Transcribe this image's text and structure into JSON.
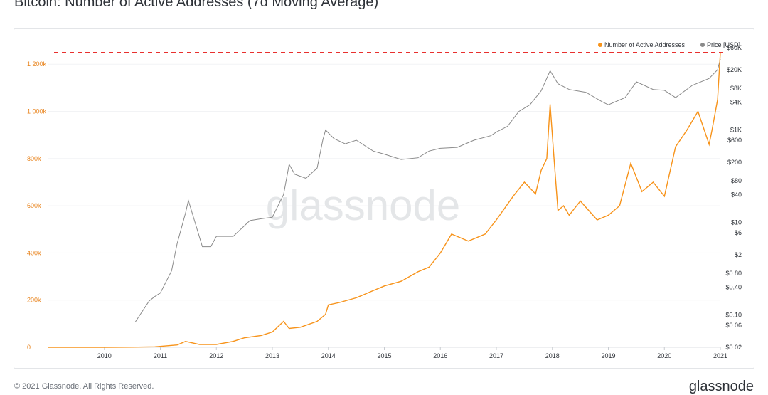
{
  "title": "Bitcoin: Number of Active Addresses (7d Moving Average)",
  "watermark": "glassnode",
  "footer": {
    "copyright": "© 2021 Glassnode. All Rights Reserved.",
    "logo": "glassnode"
  },
  "colors": {
    "addresses": "#f7931a",
    "price": "#8a8a8a",
    "reference_line": "#e8302e",
    "axis_text_left": "#e8821a",
    "axis_text_right": "#2e3238"
  },
  "chart_data": {
    "type": "line",
    "title": "Bitcoin: Number of Active Addresses (7d Moving Average)",
    "legend": {
      "position": "top-right",
      "entries": [
        "Number of Active Addresses",
        "Price [USD]"
      ]
    },
    "x_ticks": [
      "2010",
      "2011",
      "2012",
      "2013",
      "2014",
      "2015",
      "2016",
      "2017",
      "2018",
      "2019",
      "2020",
      "2021"
    ],
    "x_range": [
      2009.0,
      2021.0
    ],
    "y_left": {
      "scale": "linear",
      "range": [
        0,
        1270000
      ],
      "ticks": [
        {
          "value": 0,
          "label": "0"
        },
        {
          "value": 200000,
          "label": "200k"
        },
        {
          "value": 400000,
          "label": "400k"
        },
        {
          "value": 600000,
          "label": "600k"
        },
        {
          "value": 800000,
          "label": "800k"
        },
        {
          "value": 1000000,
          "label": "1 000k"
        },
        {
          "value": 1200000,
          "label": "1 200k"
        }
      ]
    },
    "y_right": {
      "scale": "log",
      "range": [
        0.02,
        60000
      ],
      "ticks": [
        {
          "value": 60000,
          "label": "$60K"
        },
        {
          "value": 20000,
          "label": "$20K"
        },
        {
          "value": 8000,
          "label": "$8K"
        },
        {
          "value": 4000,
          "label": "$4K"
        },
        {
          "value": 1000,
          "label": "$1K"
        },
        {
          "value": 600,
          "label": "$600"
        },
        {
          "value": 200,
          "label": "$200"
        },
        {
          "value": 80,
          "label": "$80"
        },
        {
          "value": 40,
          "label": "$40"
        },
        {
          "value": 10,
          "label": "$10"
        },
        {
          "value": 6,
          "label": "$6"
        },
        {
          "value": 2,
          "label": "$2"
        },
        {
          "value": 0.8,
          "label": "$0.80"
        },
        {
          "value": 0.4,
          "label": "$0.40"
        },
        {
          "value": 0.1,
          "label": "$0.10"
        },
        {
          "value": 0.06,
          "label": "$0.06"
        },
        {
          "value": 0.02,
          "label": "$0.02"
        }
      ]
    },
    "reference_line": {
      "value": 1250000,
      "style": "dashed"
    },
    "series": [
      {
        "name": "Number of Active Addresses",
        "axis": "left",
        "color": "#f7931a",
        "x": [
          2009.0,
          2010.0,
          2010.5,
          2010.9,
          2011.3,
          2011.45,
          2011.55,
          2011.7,
          2012.0,
          2012.3,
          2012.5,
          2012.8,
          2013.0,
          2013.2,
          2013.3,
          2013.5,
          2013.8,
          2013.95,
          2014.0,
          2014.2,
          2014.5,
          2014.8,
          2015.0,
          2015.3,
          2015.6,
          2015.8,
          2016.0,
          2016.2,
          2016.5,
          2016.8,
          2017.0,
          2017.3,
          2017.5,
          2017.7,
          2017.8,
          2017.9,
          2017.96,
          2018.03,
          2018.1,
          2018.2,
          2018.3,
          2018.5,
          2018.8,
          2019.0,
          2019.2,
          2019.4,
          2019.5,
          2019.6,
          2019.8,
          2020.0,
          2020.2,
          2020.4,
          2020.6,
          2020.8,
          2020.85,
          2020.95,
          2021.0
        ],
        "y": [
          0,
          0,
          500,
          2000,
          10000,
          25000,
          20000,
          12000,
          12000,
          25000,
          40000,
          50000,
          65000,
          110000,
          80000,
          85000,
          110000,
          140000,
          180000,
          190000,
          210000,
          240000,
          260000,
          280000,
          320000,
          340000,
          400000,
          480000,
          450000,
          480000,
          540000,
          640000,
          700000,
          650000,
          750000,
          800000,
          1030000,
          800000,
          580000,
          600000,
          560000,
          620000,
          540000,
          560000,
          600000,
          780000,
          720000,
          660000,
          700000,
          640000,
          850000,
          920000,
          1000000,
          860000,
          920000,
          1050000,
          1250000
        ]
      },
      {
        "name": "Price [USD]",
        "axis": "right",
        "color": "#8a8a8a",
        "x": [
          2010.55,
          2010.8,
          2010.9,
          2011.0,
          2011.2,
          2011.3,
          2011.45,
          2011.5,
          2011.6,
          2011.75,
          2011.9,
          2012.0,
          2012.3,
          2012.6,
          2012.8,
          2013.0,
          2013.2,
          2013.3,
          2013.4,
          2013.6,
          2013.8,
          2013.9,
          2013.95,
          2014.1,
          2014.3,
          2014.5,
          2014.8,
          2015.0,
          2015.3,
          2015.6,
          2015.8,
          2016.0,
          2016.3,
          2016.6,
          2016.9,
          2017.0,
          2017.2,
          2017.4,
          2017.6,
          2017.8,
          2017.96,
          2018.1,
          2018.3,
          2018.6,
          2018.9,
          2019.0,
          2019.3,
          2019.5,
          2019.8,
          2020.0,
          2020.2,
          2020.5,
          2020.8,
          2020.95,
          2021.0
        ],
        "y": [
          0.07,
          0.2,
          0.25,
          0.3,
          0.9,
          3.5,
          16,
          30,
          12,
          3,
          3,
          5,
          5,
          11,
          12,
          13,
          40,
          180,
          110,
          90,
          150,
          600,
          1000,
          650,
          500,
          600,
          350,
          300,
          230,
          250,
          350,
          400,
          420,
          600,
          750,
          900,
          1200,
          2500,
          3500,
          7000,
          19000,
          10000,
          7500,
          6500,
          4000,
          3500,
          5000,
          11000,
          7500,
          7200,
          5000,
          9200,
          13000,
          20000,
          34000
        ]
      }
    ]
  }
}
